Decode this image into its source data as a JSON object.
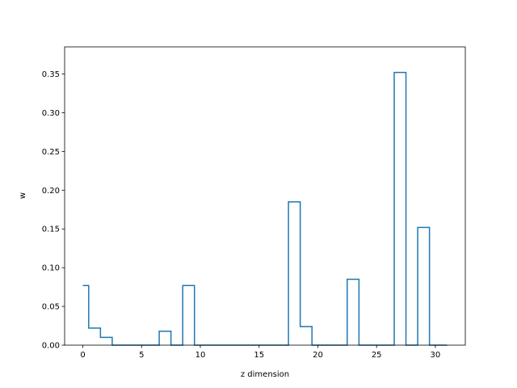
{
  "chart_data": {
    "type": "line",
    "drawstyle": "steps-mid",
    "title": "",
    "xlabel": "z dimension",
    "ylabel": "w",
    "xlim": [
      -1.55,
      32.55
    ],
    "ylim": [
      0,
      0.385
    ],
    "xticks": [
      0,
      5,
      10,
      15,
      20,
      25,
      30
    ],
    "yticks": [
      0.0,
      0.05,
      0.1,
      0.15,
      0.2,
      0.25,
      0.3,
      0.35
    ],
    "ytick_labels": [
      "0.00",
      "0.05",
      "0.10",
      "0.15",
      "0.20",
      "0.25",
      "0.30",
      "0.35"
    ],
    "grid": false,
    "color": "#1f77b4",
    "x": [
      0,
      1,
      2,
      3,
      4,
      5,
      6,
      7,
      8,
      9,
      10,
      11,
      12,
      13,
      14,
      15,
      16,
      17,
      18,
      19,
      20,
      21,
      22,
      23,
      24,
      25,
      26,
      27,
      28,
      29,
      30,
      31
    ],
    "y": [
      0.077,
      0.022,
      0.01,
      0,
      0,
      0,
      0,
      0.018,
      0,
      0.077,
      0,
      0,
      0,
      0,
      0,
      0,
      0,
      0,
      0.185,
      0.024,
      0,
      0,
      0,
      0.085,
      0,
      0,
      0,
      0.352,
      0,
      0.152,
      0,
      0
    ]
  }
}
